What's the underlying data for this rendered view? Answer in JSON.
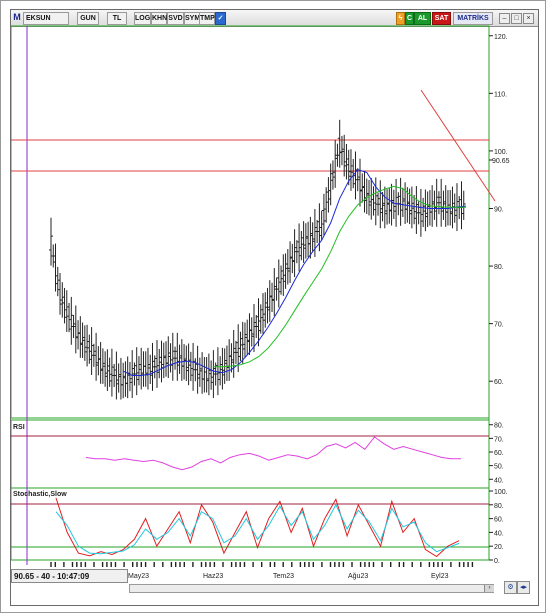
{
  "toolbar": {
    "m_label": "M",
    "symbol": "EKSUN",
    "period": "GUN",
    "currency": "TL",
    "log": "LOG",
    "khn": "KHN",
    "svd": "SVD",
    "sym": "SYM",
    "tmp": "TMP",
    "al": "AL",
    "sat": "SAT",
    "matriks": "MATRİKS"
  },
  "price_axis": {
    "ticks": [
      "120.",
      "110.",
      "100.",
      "90.",
      "80.",
      "70.",
      "60."
    ],
    "last_price_label": "90.65"
  },
  "rsi_panel": {
    "title": "RSI",
    "ticks": [
      "80.",
      "70.",
      "60.",
      "50.",
      "40."
    ]
  },
  "stoch_panel": {
    "title": "Stochastic,Slow",
    "ticks": [
      "100.",
      "80.",
      "60.",
      "40.",
      "20.",
      "0."
    ]
  },
  "status": {
    "readout": "90.65 - 40 - 10:47:09"
  },
  "x_axis": {
    "labels": [
      "May23",
      "Haz23",
      "Tem23",
      "Ağu23",
      "Eyl23"
    ]
  },
  "colors": {
    "resistance_line": "#e04040",
    "ma_short": "#1a2ad8",
    "ma_long": "#22c022",
    "rsi_line": "#e040e0",
    "stoch_k": "#e02020",
    "stoch_d": "#20c8e0",
    "cursor_line": "#8a2ad0"
  },
  "chart_data": [
    {
      "type": "line",
      "title": "",
      "series": [
        {
          "name": "",
          "x": [
            0,
            10,
            20,
            30,
            40,
            50,
            60,
            70,
            80,
            90,
            100,
            110,
            120,
            130,
            140,
            150,
            160,
            170,
            180,
            190,
            200,
            210,
            220,
            230,
            240,
            250,
            260,
            270,
            280,
            290,
            300,
            310,
            320,
            330,
            340,
            350,
            360,
            370,
            380,
            390,
            400,
            410,
            420,
            430,
            440,
            450,
            460
          ],
          "values": [
            84,
            75,
            71,
            68,
            66,
            64,
            62,
            61,
            60,
            61,
            62,
            62,
            63,
            64,
            64,
            63,
            62,
            61,
            61,
            62,
            64,
            66,
            68,
            70,
            73,
            76,
            79,
            82,
            84,
            85,
            87,
            94,
            101,
            97,
            95,
            92,
            91,
            90,
            90.65,
            91,
            90,
            89,
            90,
            91,
            90,
            90,
            90.65
          ]
        }
      ],
      "ylim": [
        55,
        121
      ]
    },
    {
      "type": "line",
      "title": "RSI",
      "ylim": [
        38,
        82
      ],
      "series": [
        {
          "name": "",
          "values": [
            56,
            55,
            55,
            54,
            55,
            54,
            53,
            54,
            52,
            49,
            47,
            49,
            53,
            55,
            52,
            56,
            58,
            59,
            57,
            54,
            56,
            58,
            57,
            55,
            58,
            64,
            66,
            63,
            67,
            62,
            71,
            66,
            62,
            64,
            62,
            60,
            58,
            56,
            55,
            55
          ]
        }
      ]
    },
    {
      "type": "line",
      "title": "Stochastic,Slow",
      "ylim": [
        0,
        100
      ],
      "series": [
        {
          "name": "",
          "values": [
            90,
            40,
            10,
            6,
            12,
            8,
            15,
            30,
            60,
            20,
            45,
            70,
            25,
            80,
            55,
            10,
            40,
            70,
            18,
            60,
            85,
            40,
            75,
            20,
            60,
            88,
            35,
            80,
            50,
            20,
            85,
            40,
            60,
            15,
            5,
            20,
            28
          ]
        },
        {
          "name": "",
          "values": [
            70,
            50,
            20,
            10,
            9,
            11,
            13,
            22,
            45,
            30,
            40,
            60,
            35,
            70,
            60,
            25,
            35,
            60,
            30,
            50,
            78,
            50,
            70,
            30,
            50,
            80,
            45,
            72,
            55,
            28,
            75,
            48,
            55,
            25,
            12,
            18,
            24
          ]
        }
      ]
    }
  ]
}
